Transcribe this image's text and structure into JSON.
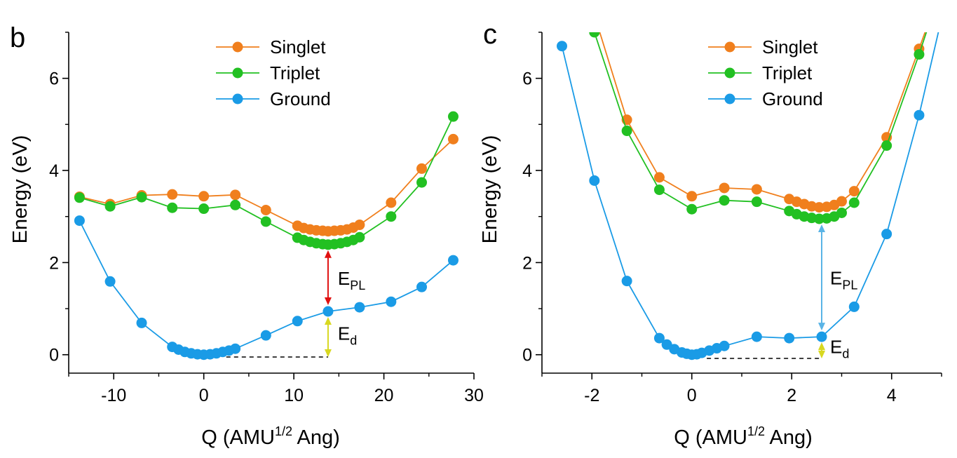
{
  "colors": {
    "singlet": "#f07f1d",
    "triplet": "#22c022",
    "ground": "#1a9be6",
    "epl_b": "#e01010",
    "epl_c": "#5ab4e6",
    "ed": "#d8d820"
  },
  "chart_data": [
    {
      "type": "line",
      "panel_label": "b",
      "xlabel": {
        "main": "Q (AMU",
        "sup": "1/2",
        "tail": " Ang)"
      },
      "ylabel": "Energy (eV)",
      "xlim": [
        -15,
        30
      ],
      "ylim": [
        -0.4,
        7
      ],
      "xticks": [
        -10,
        0,
        10,
        20,
        30
      ],
      "xtick_labels": [
        "-10",
        "0",
        "10",
        "20",
        "30"
      ],
      "yticks": [
        0,
        2,
        4,
        6
      ],
      "ytick_labels": [
        "0",
        "2",
        "4",
        "6"
      ],
      "legend": {
        "position": "top-center",
        "entries": [
          "Singlet",
          "Triplet",
          "Ground"
        ]
      },
      "series": [
        {
          "name": "Singlet",
          "color_key": "singlet",
          "x": [
            -13.8,
            -10.4,
            -6.9,
            -3.5,
            0,
            3.5,
            6.9,
            10.4,
            11.1,
            11.8,
            12.5,
            13.2,
            13.8,
            14.5,
            15.2,
            15.9,
            16.6,
            17.3,
            20.8,
            24.2,
            27.7
          ],
          "y": [
            3.43,
            3.27,
            3.46,
            3.48,
            3.44,
            3.47,
            3.14,
            2.8,
            2.75,
            2.72,
            2.7,
            2.69,
            2.68,
            2.69,
            2.7,
            2.72,
            2.76,
            2.82,
            3.3,
            4.04,
            4.68
          ]
        },
        {
          "name": "Triplet",
          "color_key": "triplet",
          "x": [
            -13.8,
            -10.4,
            -6.9,
            -3.5,
            0,
            3.5,
            6.9,
            10.4,
            11.1,
            11.8,
            12.5,
            13.2,
            13.8,
            14.5,
            15.2,
            15.9,
            16.6,
            17.3,
            20.8,
            24.2,
            27.7
          ],
          "y": [
            3.41,
            3.22,
            3.42,
            3.19,
            3.17,
            3.25,
            2.89,
            2.54,
            2.49,
            2.45,
            2.42,
            2.4,
            2.39,
            2.4,
            2.42,
            2.45,
            2.49,
            2.55,
            3.0,
            3.74,
            5.17
          ]
        },
        {
          "name": "Ground",
          "color_key": "ground",
          "x": [
            -13.8,
            -10.4,
            -6.9,
            -3.5,
            -2.8,
            -2.1,
            -1.4,
            -0.7,
            0,
            0.7,
            1.4,
            2.1,
            2.8,
            3.5,
            6.9,
            10.4,
            13.8,
            17.3,
            20.8,
            24.2,
            27.7
          ],
          "y": [
            2.91,
            1.59,
            0.69,
            0.17,
            0.11,
            0.06,
            0.03,
            0.01,
            0.0,
            0.01,
            0.03,
            0.06,
            0.09,
            0.13,
            0.42,
            0.73,
            0.94,
            1.03,
            1.15,
            1.47,
            2.05
          ]
        }
      ],
      "annotations": {
        "epl": {
          "label": "E",
          "sub": "PL",
          "x": 13.8,
          "y_from": 0.94,
          "y_to": 2.39,
          "color_key": "epl_b"
        },
        "ed": {
          "label": "E",
          "sub": "d",
          "x": 13.8,
          "y_from": -0.05,
          "y_to": 0.94,
          "color_key": "ed"
        },
        "baseline": {
          "x_from": 2.5,
          "x_to": 13.8,
          "y": -0.05
        }
      }
    },
    {
      "type": "line",
      "panel_label": "c",
      "xlabel": {
        "main": "Q (AMU",
        "sup": "1/2",
        "tail": " Ang)"
      },
      "ylabel": "Energy (eV)",
      "xlim": [
        -3.0,
        5.0
      ],
      "ylim": [
        -0.4,
        7
      ],
      "xticks": [
        -2,
        0,
        2,
        4
      ],
      "xtick_labels": [
        "-2",
        "0",
        "2",
        "4"
      ],
      "yticks": [
        0,
        2,
        4,
        6
      ],
      "ytick_labels": [
        "0",
        "2",
        "4",
        "6"
      ],
      "legend": {
        "position": "top-center",
        "entries": [
          "Singlet",
          "Triplet",
          "Ground"
        ]
      },
      "series": [
        {
          "name": "Singlet",
          "color_key": "singlet",
          "x": [
            -2.3,
            -1.3,
            -0.65,
            0,
            0.65,
            1.3,
            1.95,
            2.1,
            2.25,
            2.4,
            2.55,
            2.7,
            2.85,
            3.0,
            3.25,
            3.9,
            4.55,
            5.0
          ],
          "y": [
            8.6,
            5.1,
            3.85,
            3.44,
            3.62,
            3.59,
            3.38,
            3.32,
            3.27,
            3.22,
            3.2,
            3.21,
            3.25,
            3.33,
            3.55,
            4.72,
            6.64,
            8.0
          ]
        },
        {
          "name": "Triplet",
          "color_key": "triplet",
          "x": [
            -2.3,
            -1.95,
            -1.3,
            -0.65,
            0,
            0.65,
            1.3,
            1.95,
            2.1,
            2.25,
            2.4,
            2.55,
            2.7,
            2.85,
            3.0,
            3.25,
            3.9,
            4.55,
            5.0
          ],
          "y": [
            8.6,
            7.0,
            4.86,
            3.58,
            3.16,
            3.35,
            3.32,
            3.12,
            3.05,
            3.0,
            2.97,
            2.95,
            2.96,
            3.0,
            3.08,
            3.3,
            4.54,
            6.52,
            8.0
          ]
        },
        {
          "name": "Ground",
          "color_key": "ground",
          "x": [
            -2.6,
            -1.95,
            -1.3,
            -0.65,
            -0.5,
            -0.35,
            -0.2,
            -0.1,
            0,
            0.1,
            0.2,
            0.35,
            0.5,
            0.65,
            1.3,
            1.95,
            2.6,
            3.25,
            3.9,
            4.55,
            5.0
          ],
          "y": [
            6.7,
            3.78,
            1.6,
            0.36,
            0.22,
            0.12,
            0.05,
            0.02,
            0.0,
            0.01,
            0.04,
            0.09,
            0.14,
            0.19,
            0.39,
            0.36,
            0.39,
            1.04,
            2.62,
            5.2,
            7.3
          ]
        }
      ],
      "annotations": {
        "epl": {
          "label": "E",
          "sub": "PL",
          "x": 2.6,
          "y_from": 0.39,
          "y_to": 2.95,
          "color_key": "epl_c"
        },
        "ed": {
          "label": "E",
          "sub": "d",
          "x": 2.6,
          "y_from": -0.08,
          "y_to": 0.39,
          "color_key": "ed"
        },
        "baseline": {
          "x_from": 0.3,
          "x_to": 2.6,
          "y": -0.08
        }
      }
    }
  ]
}
